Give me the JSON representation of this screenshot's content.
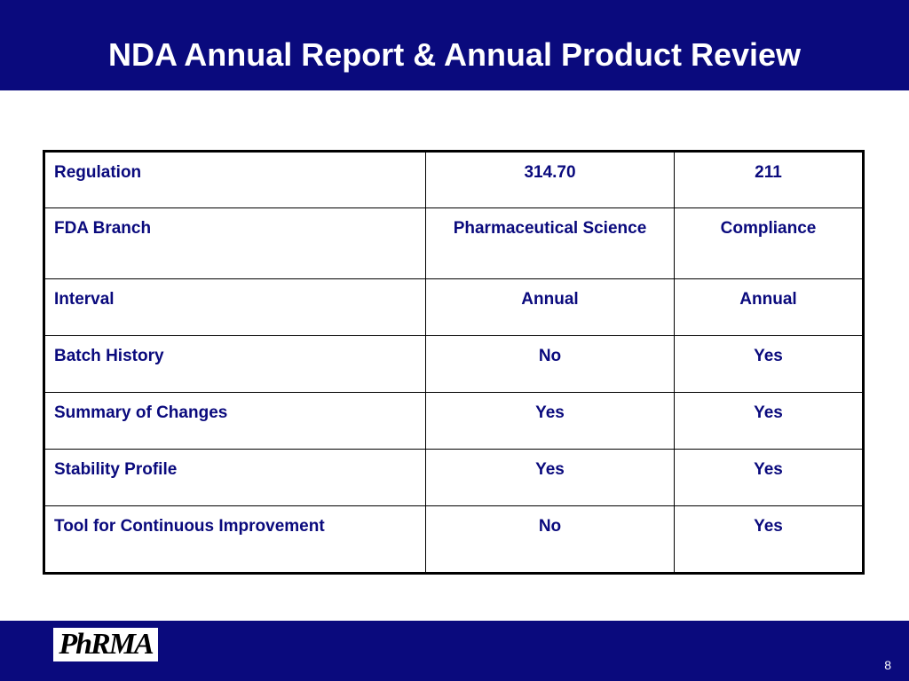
{
  "slide": {
    "title": "NDA Annual Report & Annual Product Review",
    "page_number": "8",
    "logo_text": "PhRMA"
  },
  "colors": {
    "navy": "#0a0a7d",
    "white": "#ffffff",
    "border": "#000000"
  },
  "table": {
    "rows": [
      [
        "Regulation",
        "314.70",
        "211"
      ],
      [
        "FDA Branch",
        "Pharmaceutical Science",
        "Compliance"
      ],
      [
        "Interval",
        "Annual",
        "Annual"
      ],
      [
        "Batch History",
        "No",
        "Yes"
      ],
      [
        "Summary of Changes",
        "Yes",
        "Yes"
      ],
      [
        "Stability Profile",
        "Yes",
        "Yes"
      ],
      [
        "Tool for Continuous Improvement",
        "No",
        "Yes"
      ]
    ]
  }
}
